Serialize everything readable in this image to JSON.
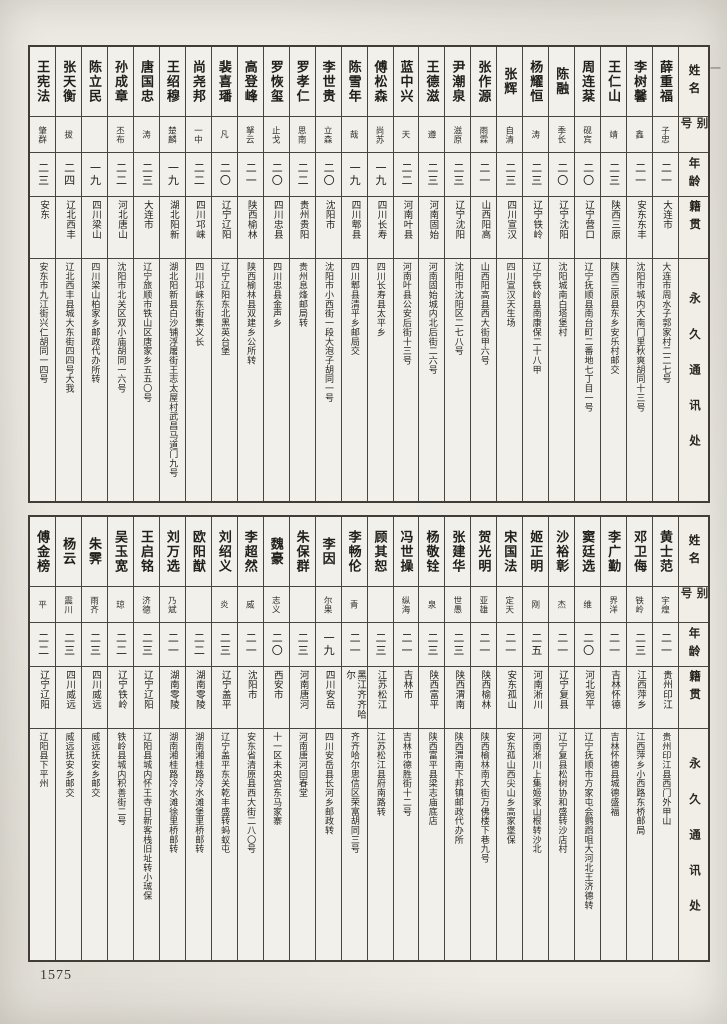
{
  "page": {
    "number": "1575",
    "margin_mark": "一"
  },
  "headers": {
    "name": "姓名",
    "alias": "别号",
    "age": "年龄",
    "native": "籍贯",
    "address": "永久通讯处"
  },
  "colors": {
    "paper": "#edebe4",
    "ink": "#221f1b",
    "border": "#4a463f"
  },
  "tables": [
    {
      "people": [
        {
          "name": "薛重福",
          "alias": "子忠",
          "age": "二一",
          "native": "大连市",
          "address": "大连市周水子郭家村二二七号"
        },
        {
          "name": "李树馨",
          "alias": "鑫",
          "age": "二一",
          "native": "安东东丰",
          "address": "沈阳市城内大南门里秋爽胡同十三号"
        },
        {
          "name": "王仁山",
          "alias": "靖",
          "age": "二三",
          "native": "陕西三原",
          "address": "陕西三原县东乡安乐村邮交"
        },
        {
          "name": "周连棻",
          "alias": "砚宾",
          "age": "二〇",
          "native": "辽宁营口",
          "address": "辽宁抚顺县南台町二番地七丁目一号"
        },
        {
          "name": "陈融",
          "alias": "季长",
          "age": "二〇",
          "native": "辽宁沈阳",
          "address": "沈阳城南白塔堡村"
        },
        {
          "name": "杨耀恒",
          "alias": "涛",
          "age": "二三",
          "native": "辽宁铁岭",
          "address": "辽宁铁岭县南康保二十八甲"
        },
        {
          "name": "张辉",
          "alias": "自清",
          "age": "二三",
          "native": "四川宣汉",
          "address": "四川宣汉天生场"
        },
        {
          "name": "张作源",
          "alias": "雨霖",
          "age": "二一",
          "native": "山西阳高",
          "address": "山西阳高县西大街甲六号"
        },
        {
          "name": "尹潮泉",
          "alias": "滋原",
          "age": "二三",
          "native": "辽宁沈阳",
          "address": "沈阳市沈阳区二七八号"
        },
        {
          "name": "王德滋",
          "alias": "遵",
          "age": "二三",
          "native": "河南固始",
          "address": "河南固始城内北后街二六号"
        },
        {
          "name": "蓝中兴",
          "alias": "天",
          "age": "二二",
          "native": "河南叶县",
          "address": "河南叶县公安后街十三号"
        },
        {
          "name": "傅松森",
          "alias": "尚苏",
          "age": "一九",
          "native": "四川长寿",
          "address": "四川长寿县太平乡"
        },
        {
          "name": "陈雪年",
          "alias": "哉",
          "age": "一九",
          "native": "四川郫县",
          "address": "四川郫县清平乡邮局交"
        },
        {
          "name": "李世贵",
          "alias": "立森",
          "age": "二〇",
          "native": "沈阳市",
          "address": "沈阳市小西街一段大泡子胡同一号"
        },
        {
          "name": "罗孝仁",
          "alias": "思南",
          "age": "二二",
          "native": "贵州贵阳",
          "address": "贵州息烽邮局转"
        },
        {
          "name": "罗恢玺",
          "alias": "止戈",
          "age": "二〇",
          "native": "四川忠县",
          "address": "四川忠县金声乡"
        },
        {
          "name": "高登峰",
          "alias": "拏云",
          "age": "二一",
          "native": "陕西榆林",
          "address": "陕西榆林县双建乡公所转"
        },
        {
          "name": "裴喜璠",
          "alias": "凡",
          "age": "二〇",
          "native": "辽宁辽阳",
          "address": "辽宁辽阳东北黑英台堡"
        },
        {
          "name": "尚尧邦",
          "alias": "一中",
          "age": "二二",
          "native": "四川邛崃",
          "address": "四川邛崃东街集义长"
        },
        {
          "name": "王绍穆",
          "alias": "楚麟",
          "age": "一九",
          "native": "湖北阳新",
          "address": "湖北阳新县白沙铺浮屠街王志太屋村武昌马道门九号"
        },
        {
          "name": "唐国忠",
          "alias": "涛",
          "age": "二三",
          "native": "大连市",
          "address": "辽宁旅顺市铁山区唐家乡五五〇号"
        },
        {
          "name": "孙成章",
          "alias": "丕布",
          "age": "二二",
          "native": "河北唐山",
          "address": "沈阳市北关区双小庙胡同一六号"
        },
        {
          "name": "陈立民",
          "alias": "",
          "age": "一九",
          "native": "四川梁山",
          "address": "四川梁山柏家乡邮政代办所转"
        },
        {
          "name": "张天衡",
          "alias": "拔",
          "age": "二四",
          "native": "辽北西丰",
          "address": "辽北西丰县城大东街四四号大我"
        },
        {
          "name": "王宪法",
          "alias": "肇群",
          "age": "二三",
          "native": "安东",
          "address": "安东市九江街兴仁胡同一四号"
        }
      ]
    },
    {
      "people": [
        {
          "name": "黄士范",
          "alias": "宇煌",
          "age": "二一",
          "native": "贵州印江",
          "address": "贵州印江县西门外甲山"
        },
        {
          "name": "邓卫侮",
          "alias": "铁岭",
          "age": "二三",
          "native": "江西萍乡",
          "address": "江西萍乡小西路东桥邮局"
        },
        {
          "name": "李广勤",
          "alias": "界洋",
          "age": "二一",
          "native": "吉林怀德",
          "address": "吉林怀德县城德盛福"
        },
        {
          "name": "窦廷选",
          "alias": "维",
          "age": "二〇",
          "native": "河北宛平",
          "address": "辽宁抚顺市方家屯会鹦鹉咀大河北王济德转"
        },
        {
          "name": "沙裕彰",
          "alias": "杰",
          "age": "二一",
          "native": "辽宁复县",
          "address": "辽宁复县松树协和盛转沙店村"
        },
        {
          "name": "姬正明",
          "alias": "刚",
          "age": "二五",
          "native": "河南淅川",
          "address": "河南淅川上集姬家山根转沙北"
        },
        {
          "name": "宋国法",
          "alias": "定天",
          "age": "二一",
          "native": "安东孤山",
          "address": "安东孤山西尖山乡高家堡保"
        },
        {
          "name": "贺光明",
          "alias": "亚雄",
          "age": "二一",
          "native": "陕西榆林",
          "address": "陕西榆林南大街万佛楼下巷九号"
        },
        {
          "name": "张建华",
          "alias": "世愚",
          "age": "二三",
          "native": "陕西渭南",
          "address": "陕西渭南下邦镇邮政代办所"
        },
        {
          "name": "杨敬铨",
          "alias": "泉",
          "age": "二三",
          "native": "陕西富平",
          "address": "陕西富平县梁志庙底店"
        },
        {
          "name": "冯世操",
          "alias": "纵海",
          "age": "二一",
          "native": "吉林市",
          "address": "吉林市德胜街十二号"
        },
        {
          "name": "顾其恕",
          "alias": "",
          "age": "二三",
          "native": "江苏松江",
          "address": "江苏松江县府南路转"
        },
        {
          "name": "李畅伦",
          "alias": "青",
          "age": "二一",
          "native": "黑江齐齐哈尔",
          "address": "齐齐哈尔思信区荣富胡同三号"
        },
        {
          "name": "李因",
          "alias": "尔果",
          "age": "一九",
          "native": "四川安岳",
          "address": "四川安岳县长河乡邮政转"
        },
        {
          "name": "朱保群",
          "alias": "",
          "age": "二三",
          "native": "河南唐河",
          "address": "河南唐河回春堂"
        },
        {
          "name": "魏豪",
          "alias": "志义",
          "age": "二〇",
          "native": "西安市",
          "address": "十一区未央宫东马家寨"
        },
        {
          "name": "李超然",
          "alias": "威",
          "age": "二一",
          "native": "沈阳市",
          "address": "安东省清原县西大街二八〇号"
        },
        {
          "name": "刘绍义",
          "alias": "炎",
          "age": "二三",
          "native": "辽宁盖平",
          "address": "辽宁盖平东关乾丰盛转蚂蚁屯"
        },
        {
          "name": "欧阳猷",
          "alias": "",
          "age": "二二",
          "native": "湖南零陵",
          "address": "湖南湘桂路冷水滩堡里桥邮转"
        },
        {
          "name": "刘万选",
          "alias": "乃斌",
          "age": "二一",
          "native": "湖南零陵",
          "address": "湖南湘桂路冷水滩徐里桥邮转"
        },
        {
          "name": "王启铭",
          "alias": "济德",
          "age": "二三",
          "native": "辽宁辽阳",
          "address": "辽阳县城内怀王寺日新客栈旧址转小珹保"
        },
        {
          "name": "吴玉宽",
          "alias": "琼",
          "age": "二二",
          "native": "辽宁铁岭",
          "address": "铁岭县城内积善街二号"
        },
        {
          "name": "朱霁",
          "alias": "雨齐",
          "age": "二三",
          "native": "四川威远",
          "address": "威远抚安乡邮交"
        },
        {
          "name": "杨云",
          "alias": "震川",
          "age": "二三",
          "native": "四川威远",
          "address": "威远抚安乡邮交"
        },
        {
          "name": "傅金榜",
          "alias": "平",
          "age": "二二",
          "native": "辽宁辽阳",
          "address": "辽阳县下平州"
        }
      ]
    }
  ]
}
